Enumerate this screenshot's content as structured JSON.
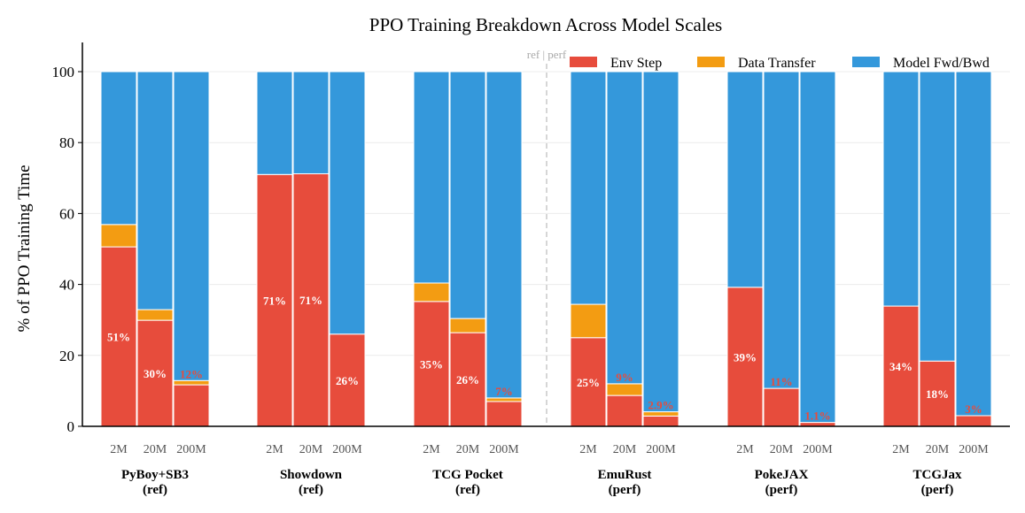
{
  "chart_data": {
    "type": "bar",
    "stacked": true,
    "title": "PPO Training Breakdown Across Model Scales",
    "xlabel": "",
    "ylabel": "% of PPO Training Time",
    "ylim": [
      0,
      107
    ],
    "yticks": [
      0,
      20,
      40,
      60,
      80,
      100
    ],
    "grid": "horizontal",
    "legend_placement": "top-right",
    "separator_label": "ref | perf",
    "scales": [
      "2M",
      "20M",
      "200M"
    ],
    "groups": [
      {
        "name": "PyBoy+SB3",
        "tag": "(ref)",
        "env": [
          50.6,
          29.9,
          11.7
        ],
        "transfer": [
          6.3,
          3.0,
          1.2
        ],
        "labels": [
          "51%",
          "30%",
          "12%"
        ]
      },
      {
        "name": "Showdown",
        "tag": "(ref)",
        "env": [
          71.0,
          71.2,
          26.0
        ],
        "transfer": [
          0,
          0,
          0
        ],
        "labels": [
          "71%",
          "71%",
          "26%"
        ]
      },
      {
        "name": "TCG Pocket",
        "tag": "(ref)",
        "env": [
          35.2,
          26.4,
          7.0
        ],
        "transfer": [
          5.2,
          4.0,
          1.0
        ],
        "labels": [
          "35%",
          "26%",
          "7%"
        ]
      },
      {
        "name": "EmuRust",
        "tag": "(perf)",
        "env": [
          25.0,
          8.7,
          2.9
        ],
        "transfer": [
          9.4,
          3.3,
          1.2
        ],
        "labels": [
          "25%",
          "9%",
          "2.9%"
        ]
      },
      {
        "name": "PokeJAX",
        "tag": "(perf)",
        "env": [
          39.2,
          10.7,
          1.1
        ],
        "transfer": [
          0,
          0,
          0
        ],
        "labels": [
          "39%",
          "11%",
          "1.1%"
        ]
      },
      {
        "name": "TCGJax",
        "tag": "(perf)",
        "env": [
          33.9,
          18.4,
          3.0
        ],
        "transfer": [
          0,
          0,
          0
        ],
        "labels": [
          "34%",
          "18%",
          "3%"
        ]
      }
    ],
    "series": [
      {
        "name": "Env Step",
        "color": "#e74c3c"
      },
      {
        "name": "Data Transfer",
        "color": "#f39c12"
      },
      {
        "name": "Model Fwd/Bwd",
        "color": "#3498db"
      }
    ]
  }
}
